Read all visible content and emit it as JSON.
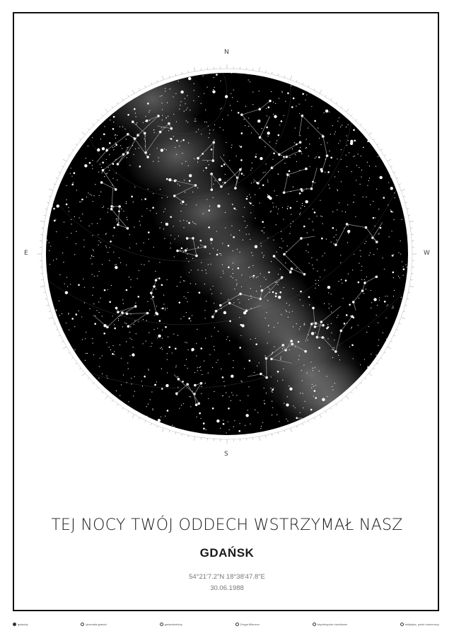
{
  "compass": {
    "north": "N",
    "south": "S",
    "east": "E",
    "west": "W"
  },
  "poster": {
    "title": "TEJ NOCY TWÓJ ODDECH WSTRZYMAŁ NASZ",
    "city": "GDAŃSK",
    "coordinates": "54°21'7.2\"N 18°38'47.8\"E",
    "date": "30.06.1988"
  },
  "legend": [
    {
      "label": "gwiazdy",
      "icon": "stars-icon"
    },
    {
      "label": "gromada gwiazd",
      "icon": "star-cluster-icon"
    },
    {
      "label": "gwiazdozbiory",
      "icon": "constellation-icon"
    },
    {
      "label": "Droga Mleczna",
      "icon": "milky-way-icon"
    },
    {
      "label": "współrzędne równikowe",
      "icon": "equatorial-grid-icon"
    },
    {
      "label": "ekliptyka, punkt równonocy",
      "icon": "ecliptic-icon"
    }
  ],
  "colors": {
    "sky": "#000000",
    "background": "#ffffff",
    "star": "#ffffff",
    "text": "#1a1a1a"
  }
}
